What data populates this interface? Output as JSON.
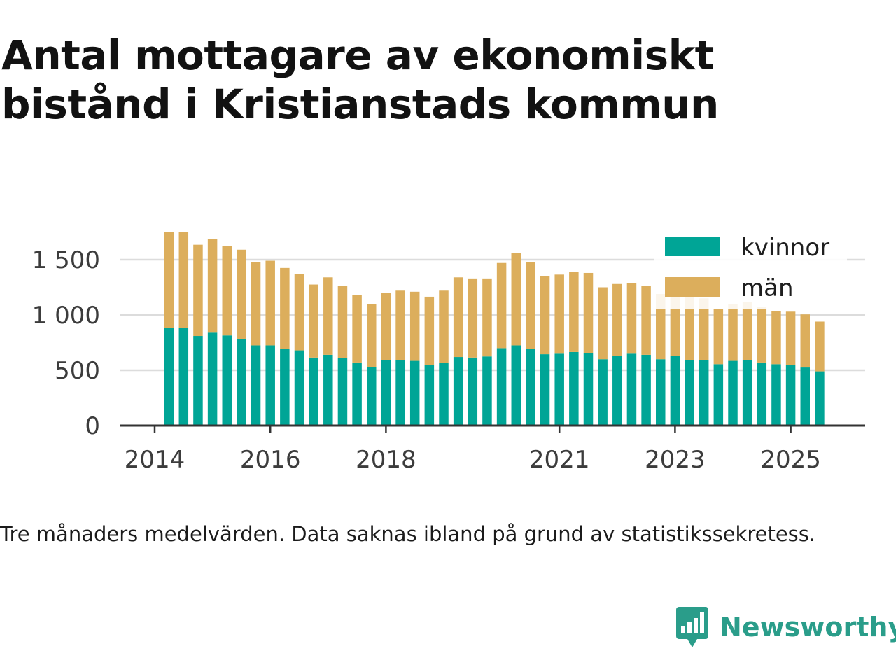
{
  "title": "Antal mottagare av ekonomiskt bistånd i Kristianstads kommun",
  "footnote": "Tre månaders medelvärden. Data saknas ibland på grund av statistikssekretess.",
  "brand": {
    "name": "Newsworthy",
    "icon": "newsworthy-logo-icon",
    "color": "#2a9d8a"
  },
  "colors": {
    "kvinnor": "#00a596",
    "man": "#dcae5c",
    "grid": "#dcdcdc",
    "axis": "#333333"
  },
  "chart_data": {
    "type": "bar",
    "stacked": true,
    "title": "Antal mottagare av ekonomiskt bistånd i Kristianstads kommun",
    "xlabel": "",
    "ylabel": "",
    "ylim": [
      0,
      1750
    ],
    "yticks": [
      0,
      500,
      1000,
      1500
    ],
    "ytick_labels": [
      "0",
      "500",
      "1 000",
      "1 500"
    ],
    "xticks": [
      2014,
      2016,
      2018,
      2021,
      2023,
      2025
    ],
    "xtick_labels": [
      "2014",
      "2016",
      "2018",
      "2021",
      "2023",
      "2025"
    ],
    "legend_position": "top-right",
    "first_period": 2014.25,
    "period_step": 0.25,
    "series": [
      {
        "name": "kvinnor",
        "key": "kvinnor",
        "values": [
          885,
          885,
          810,
          840,
          815,
          785,
          725,
          725,
          690,
          680,
          615,
          640,
          610,
          570,
          530,
          590,
          595,
          585,
          550,
          565,
          620,
          615,
          625,
          700,
          725,
          690,
          645,
          650,
          665,
          655,
          600,
          630,
          650,
          640,
          600,
          630,
          595,
          595,
          555,
          585,
          595,
          570,
          555,
          550,
          525,
          490
        ]
      },
      {
        "name": "män",
        "key": "man",
        "values": [
          865,
          865,
          825,
          845,
          810,
          805,
          750,
          765,
          735,
          690,
          660,
          700,
          650,
          610,
          570,
          610,
          625,
          625,
          615,
          655,
          720,
          715,
          705,
          770,
          835,
          790,
          705,
          715,
          725,
          725,
          650,
          650,
          640,
          625,
          590,
          560,
          570,
          555,
          500,
          510,
          520,
          500,
          480,
          480,
          480,
          450
        ]
      }
    ]
  }
}
